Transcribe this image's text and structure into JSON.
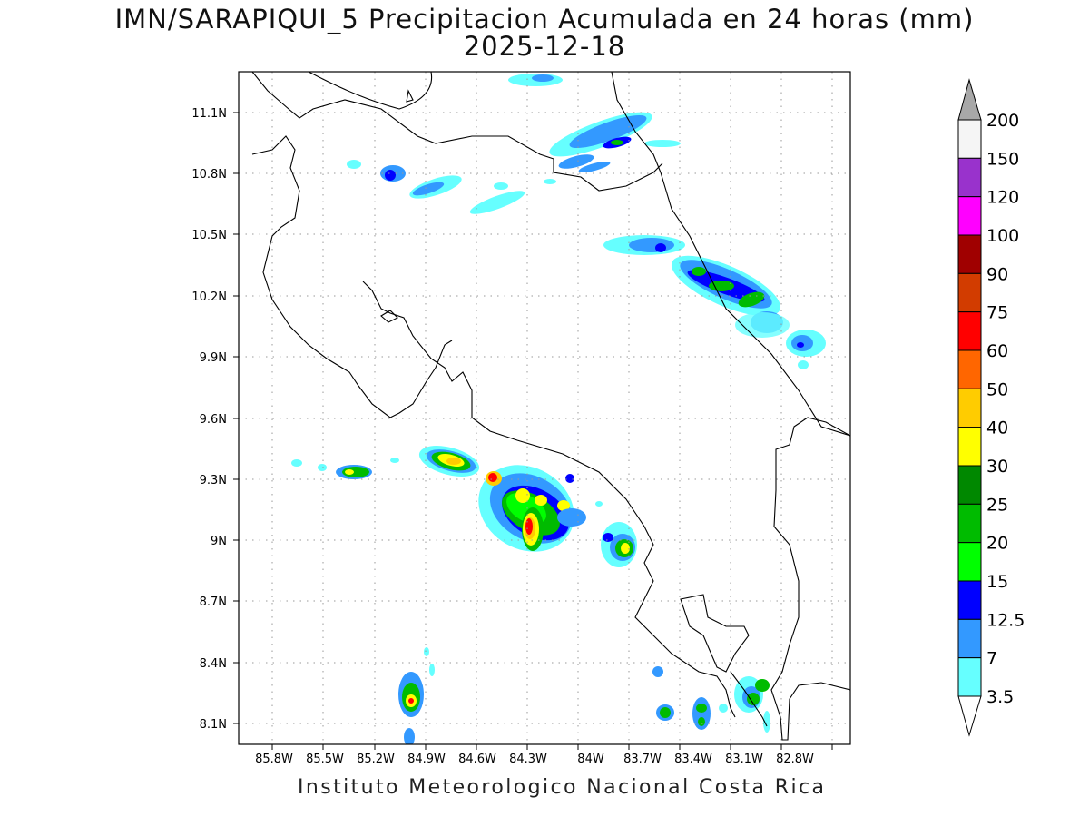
{
  "title": "IMN/SARAPIQUI_5 Precipitacion Acumulada en 24 horas (mm)",
  "subtitle": "2025-12-18",
  "footer": "Instituto Meteorologico Nacional Costa Rica",
  "axes": {
    "lon_labels": [
      "85.8W",
      "85.5W",
      "85.2W",
      "84.9W",
      "84.6W",
      "84.3W",
      "84W",
      "83.7W",
      "83.4W",
      "83.1W",
      "82.8W"
    ],
    "lat_labels": [
      "11.1N",
      "10.8N",
      "10.5N",
      "10.2N",
      "9.9N",
      "9.6N",
      "9.3N",
      "9N",
      "8.7N",
      "8.4N",
      "8.1N"
    ]
  },
  "colorbar": {
    "levels": [
      "200",
      "150",
      "120",
      "100",
      "90",
      "75",
      "60",
      "50",
      "40",
      "30",
      "25",
      "20",
      "15",
      "12.5",
      "7",
      "3.5"
    ],
    "colors": [
      "#f5f5f5",
      "#9932cc",
      "#ff00ff",
      "#a00000",
      "#d23c00",
      "#ff0000",
      "#ff6600",
      "#ffcc00",
      "#ffff00",
      "#008800",
      "#00bb00",
      "#00ff00",
      "#0000ff",
      "#3399ff",
      "#66ffff"
    ],
    "top_arrow_color": "#a8a8a8"
  },
  "chart_data": {
    "type": "heatmap",
    "title": "IMN/SARAPIQUI_5 Precipitacion Acumulada en 24 horas (mm)",
    "subtitle": "2025-12-18",
    "units": "mm",
    "lon_range": [
      "85.9W",
      "82.8W"
    ],
    "lat_range": [
      "8N",
      "11.3N"
    ],
    "grid": true
  }
}
